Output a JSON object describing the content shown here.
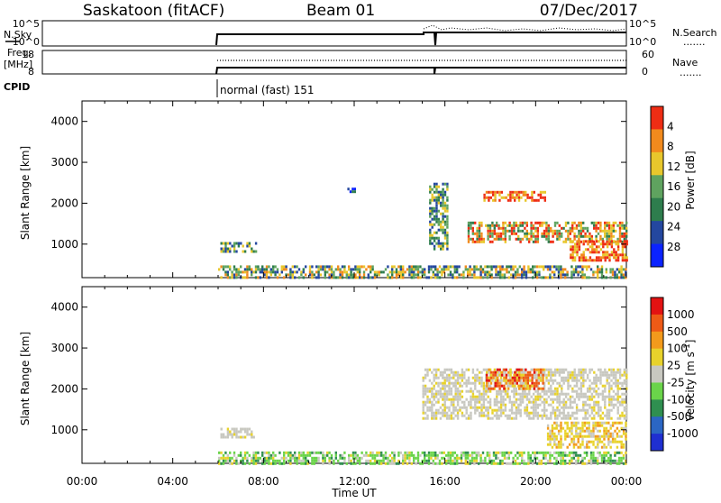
{
  "header": {
    "station": "Saskatoon (fitACF)",
    "beam": "Beam 01",
    "date": "07/Dec/2017"
  },
  "top_panels": {
    "nsky_label": "N.Sky",
    "nsky_ticks": [
      "10^5",
      "10^0"
    ],
    "nsearch_label": "N.Search",
    "nsearch_ticks": [
      "10^5",
      "10^0"
    ],
    "freq_label_1": "Freq.",
    "freq_label_2": "[MHz]",
    "freq_ticks": [
      "18",
      "8"
    ],
    "nave_label": "Nave",
    "nave_ticks": [
      "60",
      "0"
    ],
    "cpid_label": "CPID",
    "cpid_value": "normal (fast) 151",
    "dotted_marker": "......."
  },
  "chart_data": [
    {
      "type": "heatmap",
      "title": "",
      "xlabel": "Time UT",
      "ylabel": "Slant Range [km]",
      "xlim": [
        0,
        24
      ],
      "ylim": [
        180,
        4500
      ],
      "yticks": [
        "1000",
        "2000",
        "3000",
        "4000"
      ],
      "colorbar_label": "Power [dB]",
      "colorbar_ticks": [
        "4",
        "8",
        "12",
        "16",
        "20",
        "24",
        "28"
      ],
      "colorbar_colors": [
        "#0b23ff",
        "#24479f",
        "#2e7d4d",
        "#5fa35f",
        "#e8c72c",
        "#f28a1d",
        "#ee2d14"
      ],
      "data_blobs": [
        {
          "t0": 6.0,
          "t1": 24.0,
          "r0": 200,
          "r1": 480,
          "level": "low-medium"
        },
        {
          "t0": 6.1,
          "t1": 7.7,
          "r0": 850,
          "r1": 1050,
          "level": "medium"
        },
        {
          "t0": 11.7,
          "t1": 12.0,
          "r0": 2280,
          "r1": 2380,
          "level": "low"
        },
        {
          "t0": 15.3,
          "t1": 16.1,
          "r0": 900,
          "r1": 2500,
          "level": "medium"
        },
        {
          "t0": 17.0,
          "t1": 24.0,
          "r0": 1050,
          "r1": 1550,
          "level": "medium-high"
        },
        {
          "t0": 17.7,
          "t1": 20.4,
          "r0": 2050,
          "r1": 2300,
          "level": "high"
        },
        {
          "t0": 21.5,
          "t1": 24.0,
          "r0": 600,
          "r1": 1100,
          "level": "high"
        }
      ]
    },
    {
      "type": "heatmap",
      "title": "",
      "xlabel": "Time UT",
      "ylabel": "Slant Range [km]",
      "xlim": [
        0,
        24
      ],
      "ylim": [
        180,
        4500
      ],
      "xticks": [
        "00:00",
        "04:00",
        "08:00",
        "12:00",
        "16:00",
        "20:00",
        "00:00"
      ],
      "yticks": [
        "1000",
        "2000",
        "3000",
        "4000"
      ],
      "colorbar_label": "Velocity [m s",
      "colorbar_label_sup": "-1",
      "colorbar_label_end": "]",
      "colorbar_ticks": [
        "1000",
        "500",
        "100",
        "25",
        "-25",
        "-100",
        "-500",
        "-1000"
      ],
      "colorbar_colors": [
        "#1f2fd1",
        "#2b66c4",
        "#2f8f50",
        "#6ad44a",
        "#c8c8c0",
        "#e8d22b",
        "#f39a1c",
        "#ee5a16",
        "#e31212"
      ],
      "data_blobs": [
        {
          "t0": 6.0,
          "t1": 24.0,
          "r0": 200,
          "r1": 470,
          "level": "weak"
        },
        {
          "t0": 6.1,
          "t1": 7.6,
          "r0": 850,
          "r1": 1050,
          "level": "ground"
        },
        {
          "t0": 15.0,
          "t1": 24.0,
          "r0": 1300,
          "r1": 2500,
          "level": "ground"
        },
        {
          "t0": 17.8,
          "t1": 20.3,
          "r0": 2000,
          "r1": 2500,
          "level": "receding"
        },
        {
          "t0": 20.5,
          "t1": 24.0,
          "r0": 600,
          "r1": 1200,
          "level": "slow-receding"
        }
      ]
    }
  ]
}
